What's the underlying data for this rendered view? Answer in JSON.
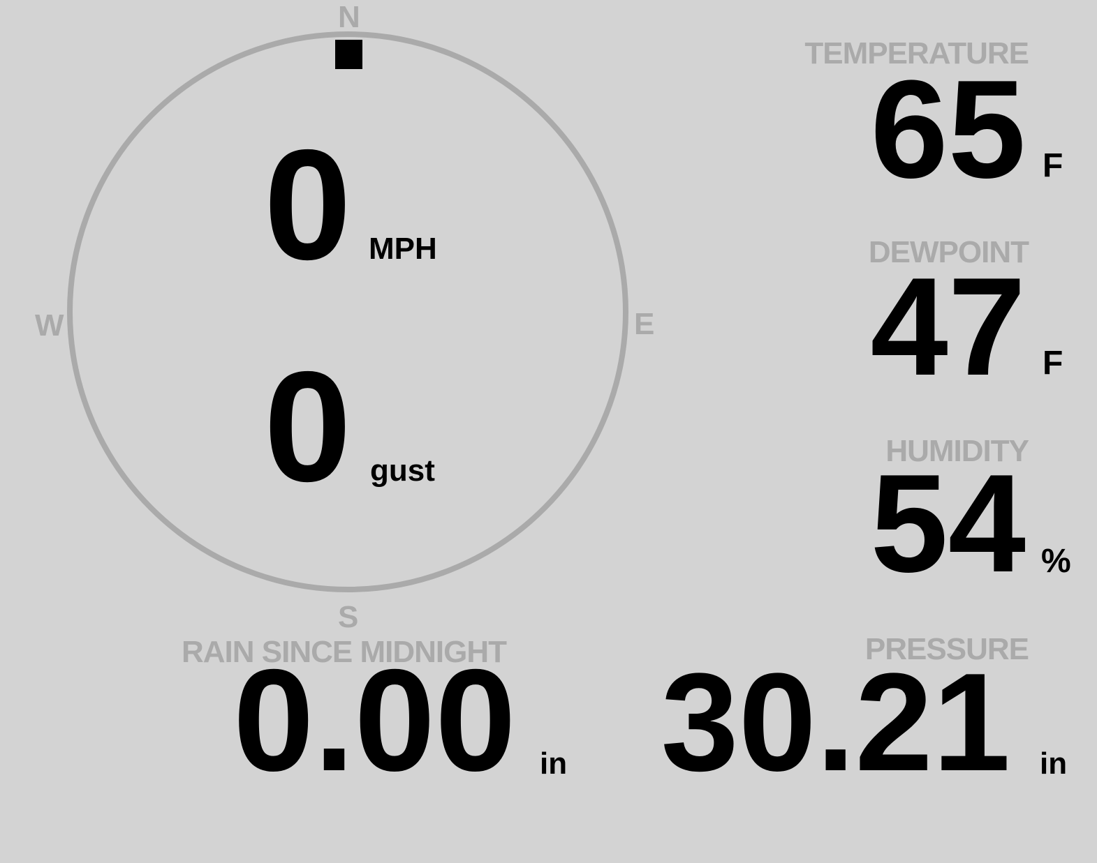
{
  "colors": {
    "background": "#d3d3d3",
    "label": "#aaaaaa",
    "value": "#000000",
    "compass_ring": "#aaaaaa"
  },
  "compass": {
    "north": "N",
    "south": "S",
    "east": "E",
    "west": "W",
    "wind_direction_deg": 0
  },
  "wind": {
    "speed": "0",
    "speed_unit": "MPH",
    "gust": "0",
    "gust_unit": "gust"
  },
  "temperature": {
    "label": "TEMPERATURE",
    "value": "65",
    "unit": "F"
  },
  "dewpoint": {
    "label": "DEWPOINT",
    "value": "47",
    "unit": "F"
  },
  "humidity": {
    "label": "HUMIDITY",
    "value": "54",
    "unit": "%"
  },
  "pressure": {
    "label": "PRESSURE",
    "value": "30.21",
    "unit": "in"
  },
  "rain": {
    "label": "RAIN SINCE MIDNIGHT",
    "value": "0.00",
    "unit": "in"
  }
}
